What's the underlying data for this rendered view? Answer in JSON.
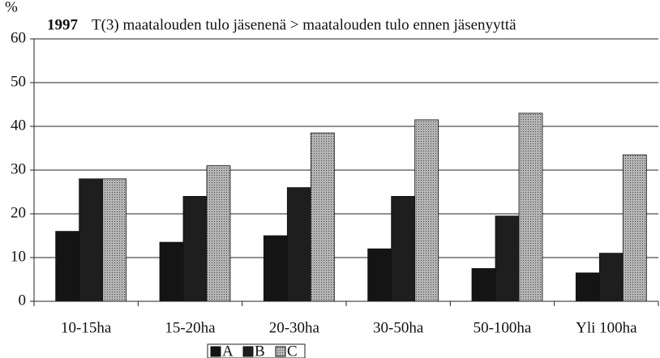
{
  "chart_data": {
    "type": "bar",
    "title": "1997",
    "subtitle": "T(3) maatalouden tulo jäsenenä > maatalouden tulo ennen jäsenyyttä",
    "y_label": "%",
    "categories": [
      "10-15ha",
      "15-20ha",
      "20-30ha",
      "30-50ha",
      "50-100ha",
      "Yli 100ha"
    ],
    "series": [
      {
        "name": "A",
        "color": "#141414",
        "values": [
          16,
          13.5,
          15,
          12,
          7.5,
          6.5
        ]
      },
      {
        "name": "B",
        "color": "#1e1e1e",
        "values": [
          28,
          24,
          26,
          24,
          19.5,
          11
        ]
      },
      {
        "name": "C",
        "color": "#9a9a9a",
        "values": [
          28,
          31,
          38.5,
          41.5,
          43,
          33.5
        ]
      }
    ],
    "ylim": [
      0,
      60
    ],
    "yticks": [
      0,
      10,
      20,
      30,
      40,
      50,
      60
    ],
    "grid": true,
    "legend": "bottom"
  }
}
